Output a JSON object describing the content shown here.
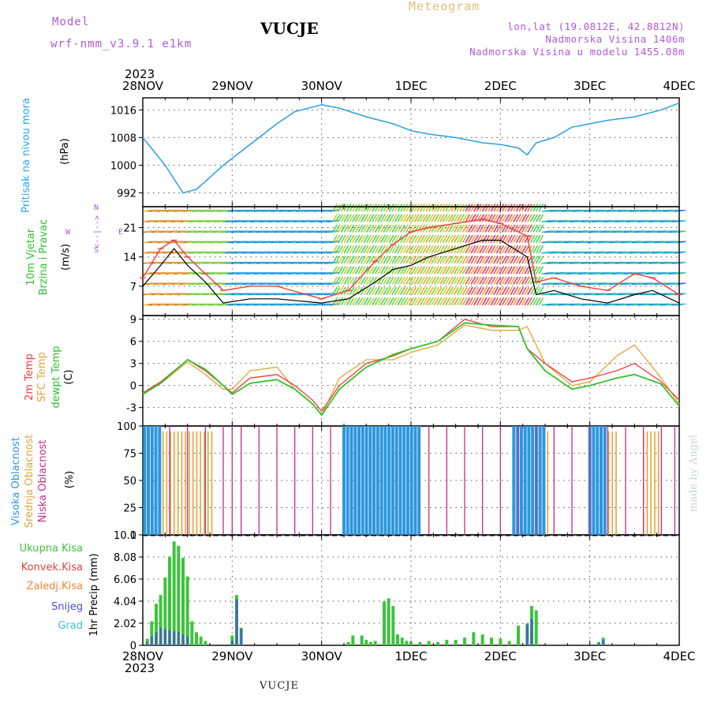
{
  "header": {
    "model_label": "Model",
    "model_name": "wrf-nmm_v3.9.1  e1km",
    "chart_kind": "Meteogram",
    "station": "VUCJE",
    "coords": "lon,lat (19.0812E, 42.8812N)",
    "elevation": "Nadmorska Visina 1406m",
    "model_elevation": "Nadmorska Visina u modelu 1455.08m",
    "year": "2023",
    "credit": "made by Angel",
    "footer_station": "VUCJE"
  },
  "colors": {
    "pressure": "#2a9fe6",
    "wind_speed": "#000000",
    "gust": "#e84040",
    "temp_2m": "#ef3c3c",
    "temp_sfc": "#e0a63a",
    "dewpoint": "#34c22a",
    "cloud_high": "#2d96de",
    "cloud_mid": "#e0a63a",
    "cloud_low": "#c72d8c",
    "precip_total": "#3cc43c",
    "precip_conv": "#e84040",
    "precip_frozen": "#f0883a",
    "precip_snow": "#4b4bd6",
    "precip_graupel": "#3fc0c0",
    "label_pressure": "#2aa7e8",
    "label_wind": "#2ec02e",
    "label_compass": "#b05ad6"
  },
  "time_axis": {
    "top_labels": [
      "28NOV",
      "29NOV",
      "30NOV",
      "1DEC",
      "2DEC",
      "3DEC",
      "4DEC"
    ],
    "bottom_labels": [
      "28NOV",
      "29NOV",
      "30NOV",
      "1DEC",
      "2DEC",
      "3DEC",
      "4DEC"
    ],
    "bottom_year": "2023"
  },
  "panel_labels": {
    "pressure": [
      "Pritisak na nivou mora",
      "(hPa)"
    ],
    "wind": [
      "10m Vjetar",
      "Brzina i Pravac",
      "(m/s)"
    ],
    "compass": [
      "W",
      "<--|-->",
      "N",
      "S",
      "E"
    ],
    "temp": [
      "2m Temp",
      "SFC Temp",
      "dewpt Temp",
      "(C)"
    ],
    "cloud": [
      "Visoka Oblacnost",
      "Srednja Oblacnost",
      "Niska Oblacnost",
      "(%)"
    ],
    "precip_axis": [
      "1hr Precip (mm)"
    ],
    "precip_legend": [
      "Ukupna Kisa",
      "Konvek.Kisa",
      "Zaledj.Kisa",
      "Snijeg",
      "Grad"
    ]
  },
  "chart_data": [
    {
      "type": "line",
      "name": "Pritisak na nivou mora",
      "ylabel": "(hPa)",
      "ylim": [
        988,
        1019.5
      ],
      "yticks": [
        992,
        1000,
        1008,
        1016
      ],
      "grid": true,
      "x_days": [
        0,
        0.25,
        0.45,
        0.6,
        0.9,
        1.1,
        1.5,
        1.7,
        2.0,
        2.2,
        2.5,
        2.8,
        3.0,
        3.2,
        3.5,
        3.8,
        4.0,
        4.2,
        4.3,
        4.4,
        4.6,
        4.8,
        5.0,
        5.2,
        5.5,
        5.8,
        6.0
      ],
      "values": [
        1008,
        1000,
        992,
        993,
        1000,
        1004,
        1012,
        1015.5,
        1017.5,
        1016.5,
        1014,
        1012,
        1010,
        1009,
        1008,
        1006.5,
        1006,
        1005,
        1003,
        1006.5,
        1008,
        1011,
        1012,
        1013,
        1014,
        1016,
        1018
      ]
    },
    {
      "type": "line",
      "name": "10m Vjetar",
      "ylabel": "(m/s)",
      "ylim": [
        0,
        26
      ],
      "yticks": [
        7,
        14,
        21
      ],
      "grid": true,
      "series": [
        {
          "name": "wind speed",
          "x_days": [
            0,
            0.2,
            0.35,
            0.5,
            0.7,
            0.9,
            1.2,
            1.5,
            2.0,
            2.3,
            2.6,
            2.8,
            3.0,
            3.2,
            3.5,
            3.8,
            4.0,
            4.3,
            4.4,
            4.6,
            4.9,
            5.2,
            5.5,
            5.7,
            6.0
          ],
          "values": [
            7,
            12,
            16,
            12,
            8,
            3,
            4,
            4,
            3,
            4,
            8,
            11,
            12,
            14,
            16,
            18,
            18,
            14,
            5,
            6,
            4,
            3,
            5,
            6,
            3
          ]
        },
        {
          "name": "gust",
          "x_days": [
            0,
            0.2,
            0.35,
            0.5,
            0.7,
            0.9,
            1.2,
            1.5,
            2.0,
            2.3,
            2.6,
            2.8,
            3.0,
            3.2,
            3.5,
            3.8,
            4.0,
            4.3,
            4.4,
            4.6,
            4.9,
            5.2,
            5.5,
            5.7,
            6.0
          ],
          "values": [
            9,
            16,
            18,
            14,
            10,
            6,
            7,
            7,
            4,
            6,
            13,
            17,
            20,
            21,
            22,
            23,
            22,
            19,
            8,
            9,
            7,
            6,
            10,
            9,
            5
          ]
        }
      ]
    },
    {
      "type": "line",
      "name": "Temp",
      "ylabel": "(C)",
      "ylim": [
        -5.5,
        9.5
      ],
      "yticks": [
        -3,
        0,
        3,
        6,
        9
      ],
      "grid": true,
      "series": [
        {
          "name": "2m Temp",
          "x_days": [
            0,
            0.2,
            0.5,
            0.7,
            0.9,
            1.0,
            1.2,
            1.5,
            1.7,
            1.9,
            2.0,
            2.2,
            2.5,
            2.8,
            3.0,
            3.3,
            3.6,
            3.9,
            4.2,
            4.3,
            4.5,
            4.8,
            5.0,
            5.3,
            5.5,
            5.8,
            6.0
          ],
          "values": [
            -1,
            0.5,
            3.5,
            2,
            0,
            -1,
            1,
            1.5,
            0,
            -2,
            -3.5,
            0,
            3,
            4,
            5,
            6,
            9,
            8,
            8,
            5,
            3,
            0.5,
            1,
            2,
            3,
            0.5,
            -2
          ]
        },
        {
          "name": "SFC Temp",
          "x_days": [
            0,
            0.2,
            0.5,
            0.7,
            0.9,
            1.0,
            1.2,
            1.5,
            1.7,
            1.9,
            2.0,
            2.2,
            2.5,
            2.8,
            3.0,
            3.3,
            3.6,
            3.9,
            4.2,
            4.3,
            4.5,
            4.8,
            5.0,
            5.3,
            5.5,
            5.8,
            6.0
          ],
          "values": [
            -1,
            0.3,
            3.2,
            1.5,
            -0.5,
            -0.5,
            2,
            2.5,
            -0.5,
            -2.5,
            -4,
            1,
            3.5,
            3.5,
            4.5,
            5.5,
            8.2,
            7.5,
            7.5,
            8,
            3,
            0,
            0.5,
            4,
            5.5,
            1,
            -2.5
          ]
        },
        {
          "name": "dewpt Temp",
          "x_days": [
            0,
            0.2,
            0.5,
            0.7,
            0.9,
            1.0,
            1.2,
            1.5,
            1.7,
            1.9,
            2.0,
            2.2,
            2.5,
            2.8,
            3.0,
            3.3,
            3.6,
            3.9,
            4.2,
            4.3,
            4.5,
            4.8,
            5.0,
            5.3,
            5.5,
            5.8,
            6.0
          ],
          "values": [
            -1.2,
            0.3,
            3.5,
            2.2,
            0,
            -1.2,
            0.3,
            0.8,
            -0.5,
            -2.5,
            -4,
            -0.5,
            2.5,
            4.2,
            5,
            6,
            8.5,
            8.2,
            8,
            5,
            2,
            -0.5,
            0,
            1,
            1.5,
            0.2,
            -2.8
          ]
        }
      ]
    },
    {
      "type": "bar",
      "name": "Oblacnost",
      "ylabel": "(%)",
      "ylim": [
        0,
        100
      ],
      "yticks": [
        0,
        25,
        50,
        75,
        100
      ],
      "grid": true,
      "series": [
        {
          "name": "Visoka Oblacnost",
          "segments_days": [
            [
              0.02,
              0.2
            ],
            [
              2.25,
              3.1
            ],
            [
              4.15,
              4.5
            ],
            [
              5.0,
              5.2
            ]
          ],
          "value": 100
        },
        {
          "name": "Srednja Oblacnost",
          "segments_days": [
            [
              0.1,
              0.8
            ],
            [
              4.15,
              4.55
            ],
            [
              5.0,
              5.3
            ],
            [
              5.6,
              5.8
            ]
          ],
          "value": 95
        },
        {
          "name": "Niska Oblacnost",
          "spikes_days": [
            0.3,
            0.5,
            0.7,
            0.9,
            1.0,
            1.1,
            1.3,
            1.5,
            1.7,
            1.9,
            2.1,
            3.2,
            3.4,
            3.6,
            3.8,
            4.0,
            4.2,
            4.4,
            4.6,
            4.8,
            5.0,
            5.2,
            5.4,
            5.6,
            5.8,
            5.95
          ],
          "value": 100
        }
      ]
    },
    {
      "type": "bar",
      "name": "1hr Precip",
      "ylabel": "1hr Precip (mm)",
      "ylim": [
        0,
        10.1
      ],
      "yticks": [
        0,
        2.02,
        4.04,
        6.06,
        8.08,
        10.1
      ],
      "grid": true,
      "series": [
        {
          "name": "Ukupna Kisa",
          "x_days": [
            0.05,
            0.1,
            0.15,
            0.2,
            0.25,
            0.3,
            0.35,
            0.4,
            0.45,
            0.5,
            0.55,
            0.6,
            0.65,
            0.7,
            1.0,
            1.05,
            1.1,
            2.3,
            2.35,
            2.45,
            2.5,
            2.55,
            2.6,
            2.7,
            2.75,
            2.8,
            2.85,
            2.9,
            2.95,
            3.0,
            3.1,
            3.2,
            3.3,
            3.4,
            3.5,
            3.6,
            3.7,
            3.8,
            3.9,
            4.0,
            4.1,
            4.2,
            4.3,
            4.35,
            4.4,
            5.1,
            5.15
          ],
          "values": [
            0.6,
            2.2,
            3.8,
            4.6,
            6.2,
            8.1,
            9.5,
            9.1,
            8.0,
            6.3,
            2.2,
            1.2,
            0.8,
            0.4,
            0.9,
            4.6,
            1.6,
            0.3,
            0.9,
            0.9,
            0.5,
            0.3,
            0.4,
            4.0,
            4.3,
            3.6,
            1.0,
            0.7,
            0.4,
            0.3,
            0.3,
            0.4,
            0.3,
            0.5,
            0.5,
            0.7,
            1.2,
            1.0,
            0.7,
            0.6,
            0.4,
            1.8,
            2.0,
            3.6,
            3.2,
            0.3,
            0.7
          ]
        },
        {
          "name": "Snijeg",
          "x_days": [
            0.05,
            0.1,
            0.15,
            0.2,
            0.25,
            0.3,
            0.35,
            0.4,
            0.45,
            0.5,
            1.0,
            1.05,
            1.1,
            4.3,
            4.35,
            5.1,
            5.15
          ],
          "values": [
            0.3,
            0.8,
            1.2,
            1.6,
            1.5,
            1.4,
            1.3,
            1.2,
            1.0,
            0.8,
            0.4,
            4.2,
            1.5,
            1.9,
            2.4,
            0.2,
            0.5
          ]
        }
      ]
    }
  ]
}
